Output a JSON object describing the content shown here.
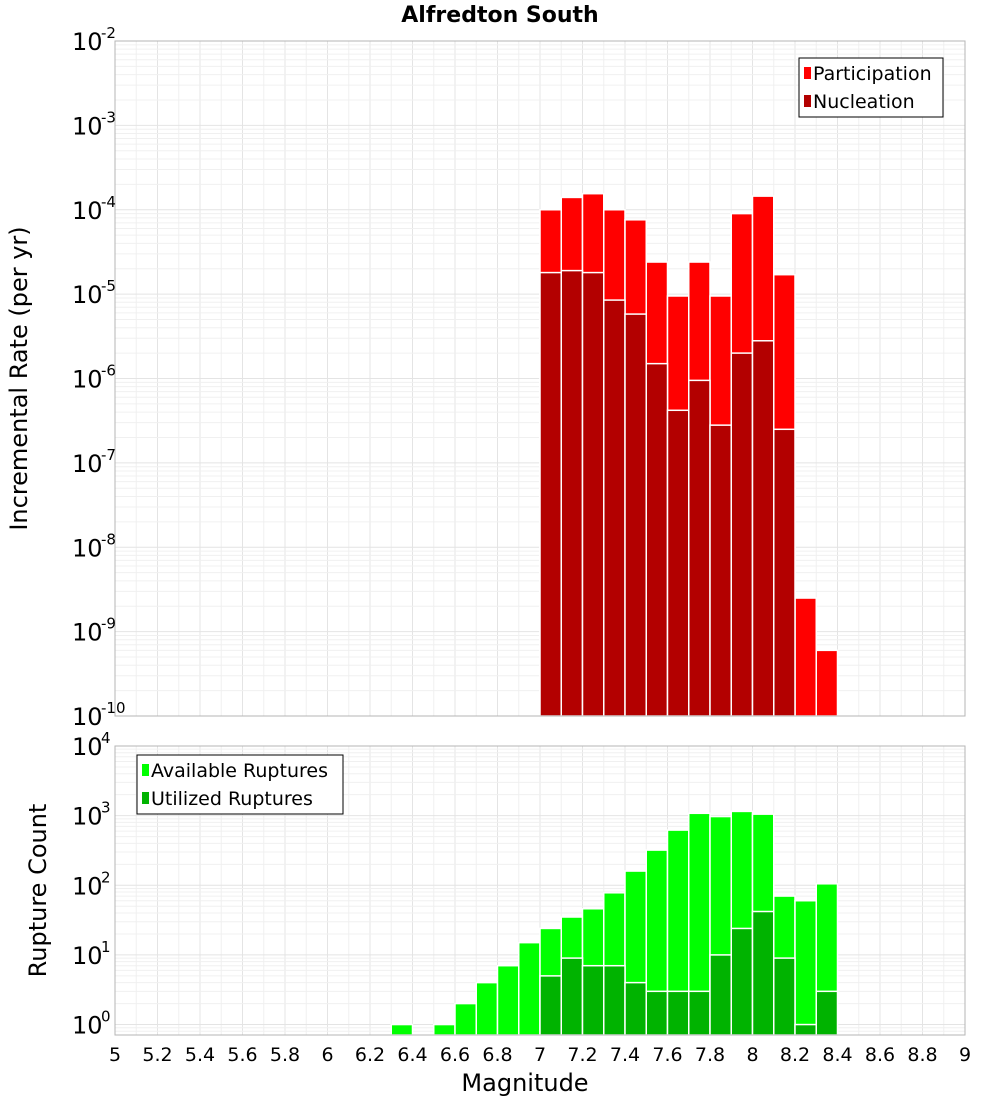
{
  "title": "Alfredton South",
  "chart_data": [
    {
      "type": "bar",
      "scale": "log",
      "xlabel": "",
      "ylabel": "Incremental Rate (per yr)",
      "xlim": [
        5,
        9
      ],
      "ylim_exp": [
        -10,
        -2
      ],
      "legend": "top-right",
      "grid": true,
      "y_tick_labels": [
        {
          "base": "10",
          "exp": "-10"
        },
        {
          "base": "10",
          "exp": "-9"
        },
        {
          "base": "10",
          "exp": "-8"
        },
        {
          "base": "10",
          "exp": "-7"
        },
        {
          "base": "10",
          "exp": "-6"
        },
        {
          "base": "10",
          "exp": "-5"
        },
        {
          "base": "10",
          "exp": "-4"
        },
        {
          "base": "10",
          "exp": "-3"
        },
        {
          "base": "10",
          "exp": "-2"
        }
      ],
      "categories": [
        7.05,
        7.15,
        7.25,
        7.35,
        7.45,
        7.55,
        7.65,
        7.75,
        7.85,
        7.95,
        8.05,
        8.15,
        8.25,
        8.35
      ],
      "series": [
        {
          "name": "Participation",
          "color": "#ff0000",
          "values": [
            0.0001,
            0.00014,
            0.000155,
            0.0001,
            7.6e-05,
            2.4e-05,
            9.5e-06,
            2.4e-05,
            9.5e-06,
            9e-05,
            0.000145,
            1.7e-05,
            2.5e-09,
            6e-10
          ]
        },
        {
          "name": "Nucleation",
          "color": "#b30000",
          "values": [
            1.8e-05,
            1.9e-05,
            1.8e-05,
            8.5e-06,
            5.8e-06,
            1.5e-06,
            4.2e-07,
            9.5e-07,
            2.8e-07,
            2e-06,
            2.8e-06,
            2.5e-07,
            null,
            null
          ]
        }
      ]
    },
    {
      "type": "bar",
      "scale": "log",
      "xlabel": "Magnitude",
      "ylabel": "Rupture Count",
      "xlim": [
        5,
        9
      ],
      "ylim_exp": [
        -0.15,
        4
      ],
      "legend": "top-left",
      "grid": true,
      "y_tick_labels": [
        {
          "base": "10",
          "exp": "0"
        },
        {
          "base": "10",
          "exp": "1"
        },
        {
          "base": "10",
          "exp": "2"
        },
        {
          "base": "10",
          "exp": "3"
        },
        {
          "base": "10",
          "exp": "4"
        }
      ],
      "x_tick_labels": [
        "5",
        "5.2",
        "5.4",
        "5.6",
        "5.8",
        "6",
        "6.2",
        "6.4",
        "6.6",
        "6.8",
        "7",
        "7.2",
        "7.4",
        "7.6",
        "7.8",
        "8",
        "8.2",
        "8.4",
        "8.6",
        "8.8",
        "9"
      ],
      "categories": [
        6.35,
        6.45,
        6.55,
        6.65,
        6.75,
        6.85,
        6.95,
        7.05,
        7.15,
        7.25,
        7.35,
        7.45,
        7.55,
        7.65,
        7.75,
        7.85,
        7.95,
        8.05,
        8.15,
        8.25,
        8.35
      ],
      "series": [
        {
          "name": "Available Ruptures",
          "color": "#00ff00",
          "values": [
            1,
            null,
            1,
            2,
            4,
            7,
            15,
            24,
            35,
            46,
            78,
            160,
            320,
            620,
            1080,
            970,
            1150,
            1050,
            70,
            60,
            105
          ]
        },
        {
          "name": "Utilized Ruptures",
          "color": "#00b300",
          "values": [
            null,
            null,
            null,
            null,
            null,
            null,
            null,
            5,
            9,
            7,
            7,
            4,
            3,
            3,
            3,
            10,
            24,
            42,
            9,
            1,
            3
          ]
        }
      ]
    }
  ]
}
